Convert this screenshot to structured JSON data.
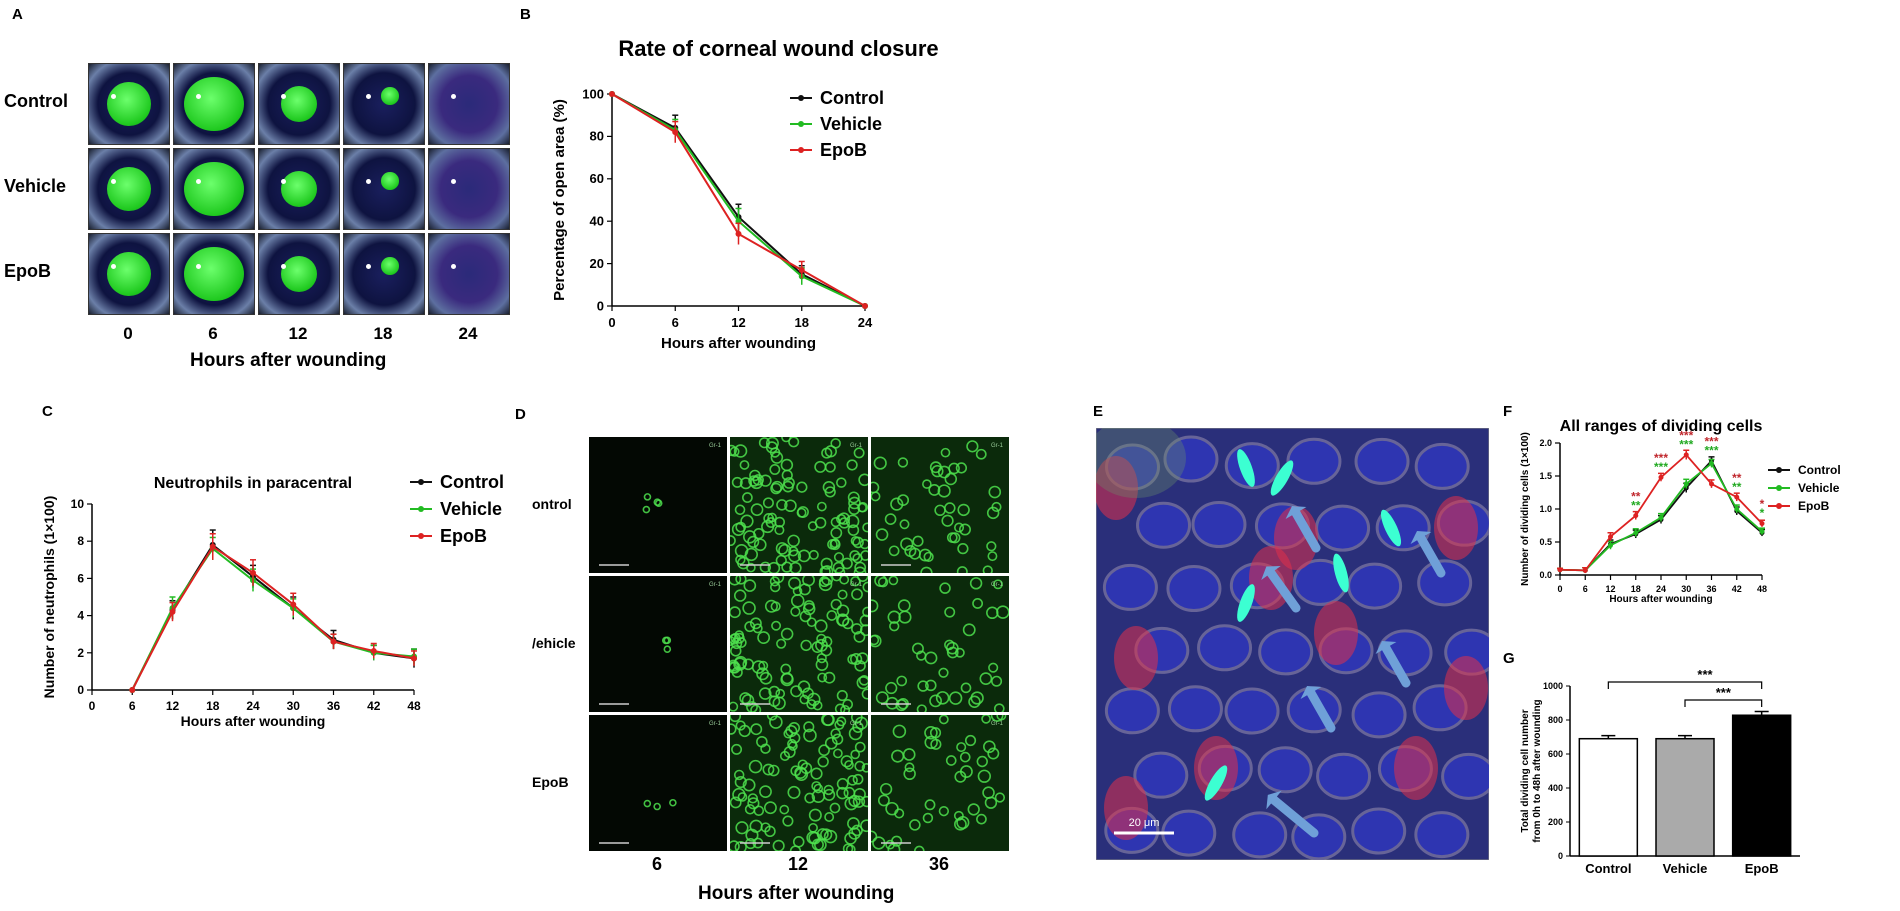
{
  "panels": {
    "A": "A",
    "B": "B",
    "C": "C",
    "D": "D",
    "E": "E",
    "F": "F",
    "G": "G"
  },
  "panel_a": {
    "rows": [
      "Control",
      "Vehicle",
      "EpoB"
    ],
    "cols": [
      "0",
      "6",
      "12",
      "18",
      "24"
    ],
    "xlabel": "Hours  after wounding"
  },
  "panel_d": {
    "rows": [
      "ontrol",
      "/ehicle",
      "EpoB"
    ],
    "cols": [
      "6",
      "12",
      "36"
    ],
    "xlabel": "Hours  after wounding",
    "tag": "Gr-1"
  },
  "panel_e": {
    "scale_label": "20 μm"
  },
  "legend": [
    "Control",
    "Vehicle",
    "EpoB"
  ],
  "colors": {
    "Control": "#111111",
    "Vehicle": "#22bb22",
    "EpoB": "#dd2222",
    "star_red": "#c0272d",
    "star_green": "#22aa22"
  },
  "chart_data": [
    {
      "id": "B",
      "type": "line",
      "title": "Rate of corneal wound closure",
      "xlabel": "Hours after wounding",
      "ylabel": "Percentage of open area (%)",
      "x": [
        0,
        6,
        12,
        18,
        24
      ],
      "xticks": [
        "0",
        "6",
        "12",
        "18",
        "24"
      ],
      "yticks": [
        "0",
        "20",
        "40",
        "60",
        "80",
        "100"
      ],
      "ylim": [
        0,
        100
      ],
      "legend_position": "right",
      "series": [
        {
          "name": "Control",
          "values": [
            100,
            84,
            42,
            15,
            0
          ],
          "err": [
            0,
            6,
            6,
            4,
            0
          ]
        },
        {
          "name": "Vehicle",
          "values": [
            100,
            83,
            40,
            14,
            0
          ],
          "err": [
            0,
            5,
            6,
            4,
            0
          ]
        },
        {
          "name": "EpoB",
          "values": [
            100,
            82,
            34,
            17,
            0
          ],
          "err": [
            0,
            5,
            5,
            4,
            0
          ]
        }
      ]
    },
    {
      "id": "C",
      "type": "line",
      "title": "Neutrophils in  paracentral",
      "xlabel": "Hours after wounding",
      "ylabel": "Number of neutrophils (1×100)",
      "x": [
        6,
        12,
        18,
        24,
        30,
        36,
        42,
        48
      ],
      "xticks": [
        "0",
        "6",
        "12",
        "18",
        "24",
        "30",
        "36",
        "42",
        "48"
      ],
      "yticks": [
        "0",
        "2",
        "4",
        "6",
        "8",
        "10"
      ],
      "ylim": [
        0,
        10
      ],
      "legend_position": "right",
      "series": [
        {
          "name": "Control",
          "values": [
            0,
            4.3,
            7.8,
            6.1,
            4.4,
            2.7,
            2.0,
            1.7
          ],
          "err": [
            0,
            0.5,
            0.8,
            0.6,
            0.6,
            0.5,
            0.4,
            0.5
          ]
        },
        {
          "name": "Vehicle",
          "values": [
            0,
            4.4,
            7.6,
            5.9,
            4.4,
            2.6,
            2.0,
            1.8
          ],
          "err": [
            0,
            0.6,
            0.6,
            0.6,
            0.5,
            0.4,
            0.4,
            0.4
          ]
        },
        {
          "name": "EpoB",
          "values": [
            0,
            4.2,
            7.7,
            6.3,
            4.6,
            2.6,
            2.1,
            1.7
          ],
          "err": [
            0,
            0.5,
            0.7,
            0.7,
            0.6,
            0.4,
            0.4,
            0.4
          ]
        }
      ]
    },
    {
      "id": "F",
      "type": "line",
      "title": "All ranges of dividing cells",
      "xlabel": "Hours after wounding",
      "ylabel": "Number of dividing cells (1×100)",
      "x": [
        0,
        6,
        12,
        18,
        24,
        30,
        36,
        42,
        48
      ],
      "xticks": [
        "0",
        "6",
        "12",
        "18",
        "24",
        "30",
        "36",
        "42",
        "48"
      ],
      "yticks": [
        "0.0",
        "0.5",
        "1.0",
        "1.5",
        "2.0"
      ],
      "ylim": [
        0,
        2
      ],
      "legend_position": "right",
      "series": [
        {
          "name": "Control",
          "values": [
            0.08,
            0.07,
            0.47,
            0.62,
            0.84,
            1.32,
            1.73,
            0.97,
            0.64
          ],
          "err": [
            0.02,
            0.04,
            0.06,
            0.06,
            0.06,
            0.07,
            0.06,
            0.06,
            0.05
          ]
        },
        {
          "name": "Vehicle",
          "values": [
            0.08,
            0.07,
            0.45,
            0.64,
            0.87,
            1.38,
            1.69,
            1.0,
            0.66
          ],
          "err": [
            0.02,
            0.04,
            0.06,
            0.06,
            0.06,
            0.07,
            0.06,
            0.06,
            0.05
          ]
        },
        {
          "name": "EpoB",
          "values": [
            0.08,
            0.07,
            0.58,
            0.9,
            1.48,
            1.82,
            1.38,
            1.18,
            0.78
          ],
          "err": [
            0.02,
            0.04,
            0.06,
            0.06,
            0.06,
            0.07,
            0.06,
            0.06,
            0.05
          ]
        }
      ],
      "significance": [
        {
          "x": 18,
          "red": "**",
          "green": "**"
        },
        {
          "x": 24,
          "red": "***",
          "green": "***"
        },
        {
          "x": 30,
          "red": "***",
          "green": "***"
        },
        {
          "x": 36,
          "red": "***",
          "green": "***"
        },
        {
          "x": 42,
          "red": "**",
          "green": "**"
        },
        {
          "x": 48,
          "red": "*",
          "green": "*"
        }
      ]
    },
    {
      "id": "G",
      "type": "bar",
      "ylabel": "Total dividing cell number from 0h to 48h after wounding",
      "categories": [
        "Control",
        "Vehicle",
        "EpoB"
      ],
      "values": [
        690,
        690,
        828
      ],
      "err": [
        18,
        18,
        22
      ],
      "bar_colors": [
        "#ffffff",
        "#aaaaaa",
        "#000000"
      ],
      "yticks": [
        "0",
        "200",
        "400",
        "600",
        "800",
        "1000"
      ],
      "ylim": [
        0,
        1000
      ],
      "brackets": [
        {
          "from": 0,
          "to": 2,
          "label": "***"
        },
        {
          "from": 1,
          "to": 2,
          "label": "***"
        }
      ]
    }
  ]
}
